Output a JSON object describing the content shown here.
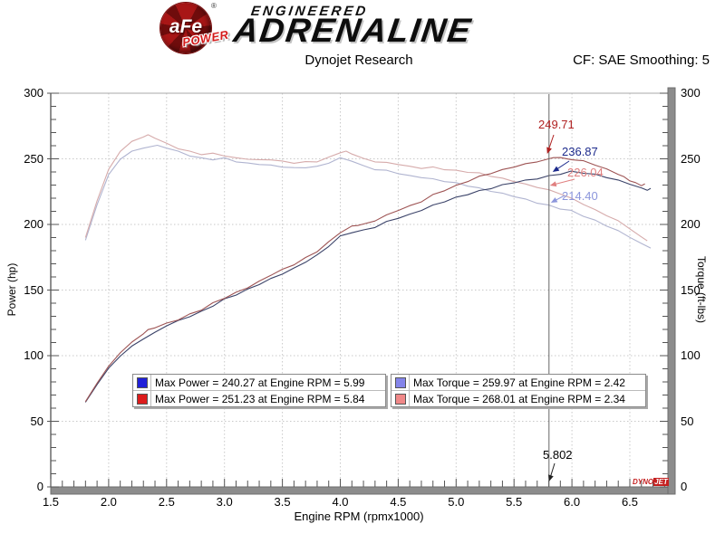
{
  "header": {
    "logo": {
      "afe": "aFe",
      "power": "POWER",
      "reg": "®",
      "line1": "ENGINEERED",
      "line2": "ADRENALINE"
    },
    "subtitle": "Dynojet Research",
    "smoothing": "CF: SAE Smoothing: 5"
  },
  "branding": {
    "dyno": "DYNO",
    "jet": "JET"
  },
  "chart_data": {
    "type": "line",
    "title": "Dynojet Research",
    "xlabel": "Engine RPM (rpmx1000)",
    "ylabel_left": "Power (hp)",
    "ylabel_right": "Torque (ft-lbs)",
    "xlim": [
      1.5,
      6.83
    ],
    "ylim": [
      0,
      300
    ],
    "x_ticks": [
      "1.5",
      "2.0",
      "2.5",
      "3.0",
      "3.5",
      "4.0",
      "4.5",
      "5.0",
      "5.5",
      "6.0",
      "6.5"
    ],
    "y_ticks": [
      "0",
      "50",
      "100",
      "150",
      "200",
      "250",
      "300"
    ],
    "grid": true,
    "legend_position": "bottom-center",
    "cursor": {
      "rpm": 5.802,
      "label": "5.802"
    },
    "cursor_values": [
      {
        "label": "249.71",
        "value": 249.71,
        "series": "power-afe",
        "color": "#b02020"
      },
      {
        "label": "236.87",
        "value": 236.87,
        "series": "power-stock",
        "color": "#1c2a8c"
      },
      {
        "label": "226.04",
        "value": 226.04,
        "series": "torque-afe",
        "color": "#e07f7f"
      },
      {
        "label": "214.40",
        "value": 214.4,
        "series": "torque-stock",
        "color": "#8c96dc"
      }
    ],
    "series": [
      {
        "name": "torque-stock",
        "axis": "right",
        "color": "#b0b4d0",
        "points": [
          [
            1.8,
            188
          ],
          [
            1.9,
            215
          ],
          [
            2.0,
            238
          ],
          [
            2.1,
            250
          ],
          [
            2.2,
            255.5
          ],
          [
            2.3,
            258.5
          ],
          [
            2.42,
            259.97
          ],
          [
            2.5,
            258.5
          ],
          [
            2.6,
            255.5
          ],
          [
            2.7,
            252.5
          ],
          [
            2.8,
            250.5
          ],
          [
            2.9,
            249.5
          ],
          [
            3.0,
            250.5
          ],
          [
            3.1,
            248
          ],
          [
            3.2,
            246.5
          ],
          [
            3.3,
            246
          ],
          [
            3.4,
            245
          ],
          [
            3.5,
            244
          ],
          [
            3.6,
            243
          ],
          [
            3.7,
            243.5
          ],
          [
            3.8,
            244
          ],
          [
            3.9,
            247
          ],
          [
            4.0,
            250.5
          ],
          [
            4.1,
            248.5
          ],
          [
            4.2,
            244.5
          ],
          [
            4.3,
            242
          ],
          [
            4.4,
            241
          ],
          [
            4.5,
            239
          ],
          [
            4.6,
            237
          ],
          [
            4.7,
            236
          ],
          [
            4.8,
            234.5
          ],
          [
            4.9,
            233
          ],
          [
            5.0,
            231.5
          ],
          [
            5.1,
            229.5
          ],
          [
            5.2,
            227.5
          ],
          [
            5.3,
            225.5
          ],
          [
            5.4,
            223.5
          ],
          [
            5.5,
            221.5
          ],
          [
            5.6,
            219
          ],
          [
            5.7,
            216.5
          ],
          [
            5.802,
            214.4
          ],
          [
            5.9,
            212
          ],
          [
            5.99,
            210.5
          ],
          [
            6.1,
            206.5
          ],
          [
            6.2,
            203
          ],
          [
            6.3,
            199
          ],
          [
            6.4,
            195
          ],
          [
            6.5,
            190.5
          ],
          [
            6.6,
            185.5
          ],
          [
            6.68,
            182
          ]
        ]
      },
      {
        "name": "torque-afe",
        "axis": "right",
        "color": "#d6abab",
        "points": [
          [
            1.8,
            190
          ],
          [
            1.9,
            218
          ],
          [
            2.0,
            242
          ],
          [
            2.1,
            256
          ],
          [
            2.2,
            263
          ],
          [
            2.3,
            267
          ],
          [
            2.34,
            268.01
          ],
          [
            2.4,
            266
          ],
          [
            2.5,
            261.5
          ],
          [
            2.6,
            258
          ],
          [
            2.7,
            255.5
          ],
          [
            2.8,
            253.5
          ],
          [
            2.9,
            254
          ],
          [
            3.0,
            252.5
          ],
          [
            3.1,
            250.5
          ],
          [
            3.2,
            250
          ],
          [
            3.3,
            249
          ],
          [
            3.4,
            249.5
          ],
          [
            3.5,
            248
          ],
          [
            3.6,
            247
          ],
          [
            3.7,
            247.5
          ],
          [
            3.8,
            248
          ],
          [
            3.9,
            251
          ],
          [
            4.0,
            255
          ],
          [
            4.05,
            255.5
          ],
          [
            4.1,
            254
          ],
          [
            4.2,
            250
          ],
          [
            4.3,
            248
          ],
          [
            4.4,
            247
          ],
          [
            4.5,
            246
          ],
          [
            4.6,
            244
          ],
          [
            4.7,
            243
          ],
          [
            4.8,
            243.5
          ],
          [
            4.9,
            242
          ],
          [
            5.0,
            241
          ],
          [
            5.1,
            240
          ],
          [
            5.2,
            239
          ],
          [
            5.3,
            237
          ],
          [
            5.4,
            235
          ],
          [
            5.5,
            233
          ],
          [
            5.6,
            230.5
          ],
          [
            5.7,
            228.5
          ],
          [
            5.802,
            226.04
          ],
          [
            5.9,
            223.5
          ],
          [
            6.0,
            219.5
          ],
          [
            6.1,
            215.5
          ],
          [
            6.2,
            211
          ],
          [
            6.3,
            207
          ],
          [
            6.4,
            202.5
          ],
          [
            6.5,
            197
          ],
          [
            6.6,
            190.5
          ],
          [
            6.65,
            187.5
          ]
        ]
      },
      {
        "name": "power-stock",
        "axis": "left",
        "color": "#3a4268",
        "points": [
          [
            1.8,
            64.5
          ],
          [
            1.9,
            78
          ],
          [
            2.0,
            90.5
          ],
          [
            2.1,
            100
          ],
          [
            2.2,
            107
          ],
          [
            2.3,
            113
          ],
          [
            2.4,
            117.5
          ],
          [
            2.5,
            123
          ],
          [
            2.6,
            126.5
          ],
          [
            2.7,
            130
          ],
          [
            2.8,
            133.5
          ],
          [
            2.9,
            138
          ],
          [
            3.0,
            143
          ],
          [
            3.1,
            146.5
          ],
          [
            3.2,
            150.5
          ],
          [
            3.3,
            154.5
          ],
          [
            3.4,
            158.5
          ],
          [
            3.5,
            162.5
          ],
          [
            3.6,
            166.5
          ],
          [
            3.7,
            171.5
          ],
          [
            3.8,
            176.5
          ],
          [
            3.9,
            183.5
          ],
          [
            4.0,
            191
          ],
          [
            4.1,
            194
          ],
          [
            4.2,
            195.5
          ],
          [
            4.3,
            198
          ],
          [
            4.4,
            202
          ],
          [
            4.5,
            205
          ],
          [
            4.6,
            207.5
          ],
          [
            4.7,
            211
          ],
          [
            4.8,
            214.5
          ],
          [
            4.9,
            217.5
          ],
          [
            5.0,
            220.5
          ],
          [
            5.1,
            223
          ],
          [
            5.2,
            225.5
          ],
          [
            5.3,
            227.5
          ],
          [
            5.4,
            230
          ],
          [
            5.5,
            232
          ],
          [
            5.6,
            233.5
          ],
          [
            5.7,
            235
          ],
          [
            5.802,
            236.87
          ],
          [
            5.9,
            238.5
          ],
          [
            5.99,
            240.27
          ],
          [
            6.1,
            239.3
          ],
          [
            6.2,
            238
          ],
          [
            6.3,
            236
          ],
          [
            6.4,
            233.5
          ],
          [
            6.5,
            231
          ],
          [
            6.6,
            227.5
          ],
          [
            6.65,
            226
          ],
          [
            6.68,
            227.5
          ]
        ]
      },
      {
        "name": "power-afe",
        "axis": "left",
        "color": "#9e5454",
        "points": [
          [
            1.8,
            65
          ],
          [
            1.9,
            79
          ],
          [
            2.0,
            92
          ],
          [
            2.1,
            102.5
          ],
          [
            2.2,
            110
          ],
          [
            2.3,
            117
          ],
          [
            2.34,
            119.5
          ],
          [
            2.4,
            121.5
          ],
          [
            2.5,
            124.5
          ],
          [
            2.6,
            127.5
          ],
          [
            2.7,
            131.5
          ],
          [
            2.8,
            135
          ],
          [
            2.9,
            140
          ],
          [
            3.0,
            144
          ],
          [
            3.1,
            148
          ],
          [
            3.2,
            152
          ],
          [
            3.3,
            156.5
          ],
          [
            3.4,
            161.5
          ],
          [
            3.5,
            165.5
          ],
          [
            3.6,
            169.5
          ],
          [
            3.7,
            174.5
          ],
          [
            3.8,
            179.5
          ],
          [
            3.9,
            186.5
          ],
          [
            4.0,
            194
          ],
          [
            4.1,
            198.5
          ],
          [
            4.15,
            199.5
          ],
          [
            4.2,
            200
          ],
          [
            4.3,
            203
          ],
          [
            4.4,
            207
          ],
          [
            4.5,
            211
          ],
          [
            4.6,
            214
          ],
          [
            4.7,
            217.5
          ],
          [
            4.8,
            222.5
          ],
          [
            4.9,
            226
          ],
          [
            5.0,
            229.5
          ],
          [
            5.1,
            233
          ],
          [
            5.2,
            236.5
          ],
          [
            5.3,
            239
          ],
          [
            5.4,
            241.5
          ],
          [
            5.5,
            244
          ],
          [
            5.6,
            246
          ],
          [
            5.7,
            248
          ],
          [
            5.802,
            249.71
          ],
          [
            5.84,
            251.23
          ],
          [
            5.9,
            250.6
          ],
          [
            6.0,
            249.6
          ],
          [
            6.1,
            248.2
          ],
          [
            6.2,
            245.5
          ],
          [
            6.3,
            242
          ],
          [
            6.4,
            238.5
          ],
          [
            6.45,
            236
          ],
          [
            6.5,
            233.5
          ],
          [
            6.55,
            231.5
          ],
          [
            6.6,
            229.5
          ],
          [
            6.63,
            231
          ]
        ]
      }
    ]
  },
  "legend_boxes": [
    {
      "rows": [
        {
          "swatch": "#2020d8",
          "text": "Max Power = 240.27 at Engine RPM = 5.99"
        },
        {
          "swatch": "#dd1c1c",
          "text": "Max Power = 251.23 at Engine RPM = 5.84"
        }
      ]
    },
    {
      "rows": [
        {
          "swatch": "#8484ea",
          "text": "Max Torque = 259.97 at Engine RPM = 2.42"
        },
        {
          "swatch": "#f08888",
          "text": "Max Torque = 268.01 at Engine RPM = 2.34"
        }
      ]
    }
  ]
}
